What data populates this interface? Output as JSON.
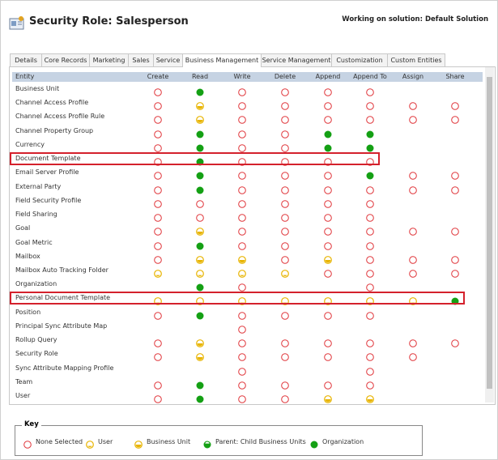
{
  "header": {
    "title": "Security Role: Salesperson",
    "solution": "Working on solution: Default Solution"
  },
  "tabs": [
    "Details",
    "Core Records",
    "Marketing",
    "Sales",
    "Service",
    "Business Management",
    "Service Management",
    "Customization",
    "Custom Entities"
  ],
  "active_tab": 5,
  "table": {
    "columns": [
      "Entity",
      "Create",
      "Read",
      "Write",
      "Delete",
      "Append",
      "Append To",
      "Assign",
      "Share"
    ],
    "rows": [
      {
        "entity": "Business Unit",
        "levels": [
          "none",
          "organization",
          "none",
          "none",
          "none",
          "none",
          null,
          null
        ]
      },
      {
        "entity": "Channel Access Profile",
        "levels": [
          "none",
          "business-unit",
          "none",
          "none",
          "none",
          "none",
          "none",
          "none"
        ]
      },
      {
        "entity": "Channel Access Profile Rule",
        "levels": [
          "none",
          "business-unit",
          "none",
          "none",
          "none",
          "none",
          "none",
          "none"
        ]
      },
      {
        "entity": "Channel Property Group",
        "levels": [
          "none",
          "organization",
          "none",
          "none",
          "organization",
          "organization",
          null,
          null
        ]
      },
      {
        "entity": "Currency",
        "levels": [
          "none",
          "organization",
          "none",
          "none",
          "organization",
          "organization",
          null,
          null
        ]
      },
      {
        "entity": "Document Template",
        "levels": [
          "none",
          "organization",
          "none",
          "none",
          "none",
          "none",
          null,
          null
        ],
        "highlight": true
      },
      {
        "entity": "Email Server Profile",
        "levels": [
          "none",
          "organization",
          "none",
          "none",
          "none",
          "organization",
          "none",
          "none"
        ]
      },
      {
        "entity": "External Party",
        "levels": [
          "none",
          "organization",
          "none",
          "none",
          "none",
          "none",
          "none",
          "none"
        ]
      },
      {
        "entity": "Field Security Profile",
        "levels": [
          "none",
          "none",
          "none",
          "none",
          "none",
          "none",
          null,
          null
        ]
      },
      {
        "entity": "Field Sharing",
        "levels": [
          "none",
          "none",
          "none",
          "none",
          "none",
          "none",
          null,
          null
        ]
      },
      {
        "entity": "Goal",
        "levels": [
          "none",
          "business-unit",
          "none",
          "none",
          "none",
          "none",
          "none",
          "none"
        ]
      },
      {
        "entity": "Goal Metric",
        "levels": [
          "none",
          "organization",
          "none",
          "none",
          "none",
          "none",
          null,
          null
        ]
      },
      {
        "entity": "Mailbox",
        "levels": [
          "none",
          "business-unit",
          "business-unit",
          "none",
          "business-unit",
          "none",
          "none",
          "none"
        ]
      },
      {
        "entity": "Mailbox Auto Tracking Folder",
        "levels": [
          "user",
          "user",
          "user",
          "user",
          "none",
          "none",
          "none",
          "none"
        ]
      },
      {
        "entity": "Organization",
        "levels": [
          null,
          "organization",
          "none",
          null,
          null,
          "none",
          null,
          null
        ]
      },
      {
        "entity": "Personal Document Template",
        "levels": [
          "user",
          "user",
          "user",
          "user",
          "user",
          "user",
          "user",
          "organization"
        ],
        "highlight": true
      },
      {
        "entity": "Position",
        "levels": [
          "none",
          "organization",
          "none",
          "none",
          "none",
          "none",
          null,
          null
        ]
      },
      {
        "entity": "Principal Sync Attribute Map",
        "levels": [
          null,
          null,
          "none",
          null,
          null,
          null,
          null,
          null
        ]
      },
      {
        "entity": "Rollup Query",
        "levels": [
          "none",
          "business-unit",
          "none",
          "none",
          "none",
          "none",
          "none",
          "none"
        ]
      },
      {
        "entity": "Security Role",
        "levels": [
          "none",
          "business-unit",
          "none",
          "none",
          "none",
          "none",
          "none",
          null
        ]
      },
      {
        "entity": "Sync Attribute Mapping Profile",
        "levels": [
          null,
          null,
          "none",
          null,
          null,
          "none",
          null,
          null
        ]
      },
      {
        "entity": "Team",
        "levels": [
          "none",
          "organization",
          "none",
          "none",
          "none",
          "none",
          null,
          null
        ]
      },
      {
        "entity": "User",
        "levels": [
          "none",
          "organization",
          "none",
          "none",
          "business-unit",
          "business-unit",
          null,
          null
        ]
      }
    ]
  },
  "key": {
    "title": "Key",
    "items": [
      {
        "label": "None Selected",
        "level": "none"
      },
      {
        "label": "User",
        "level": "user"
      },
      {
        "label": "Business Unit",
        "level": "business-unit"
      },
      {
        "label": "Parent: Child Business Units",
        "level": "parent-child"
      },
      {
        "label": "Organization",
        "level": "organization"
      }
    ]
  }
}
